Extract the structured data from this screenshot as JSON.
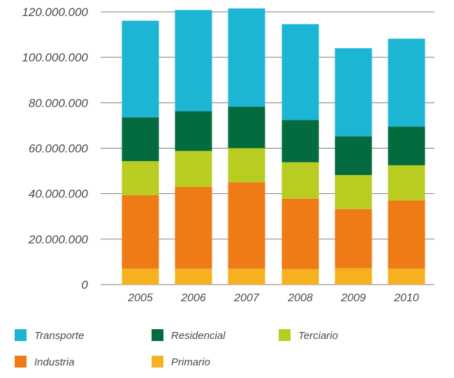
{
  "chart_data": {
    "type": "bar",
    "stacked": true,
    "categories": [
      "2005",
      "2006",
      "2007",
      "2008",
      "2009",
      "2010"
    ],
    "series": [
      {
        "name": "Primario",
        "color": "#f5b120",
        "values": [
          7000000,
          7000000,
          7000000,
          6800000,
          7200000,
          7000000
        ]
      },
      {
        "name": "Industria",
        "color": "#ee7b16",
        "values": [
          32300000,
          36000000,
          38000000,
          31000000,
          26000000,
          30000000
        ]
      },
      {
        "name": "Terciario",
        "color": "#b9cc22",
        "values": [
          15000000,
          15800000,
          15000000,
          16000000,
          15000000,
          15500000
        ]
      },
      {
        "name": "Residencial",
        "color": "#046b3f",
        "values": [
          19300000,
          17500000,
          18300000,
          18600000,
          17000000,
          17000000
        ]
      },
      {
        "name": "Transporte",
        "color": "#1cb6d4",
        "values": [
          42500000,
          44500000,
          43200000,
          42200000,
          38800000,
          38700000
        ]
      }
    ],
    "ylim": [
      0,
      120000000
    ],
    "yticks": [
      0,
      20000000,
      40000000,
      60000000,
      80000000,
      100000000,
      120000000
    ],
    "ytick_labels": [
      "0",
      "20.000.000",
      "40.000.000",
      "60.000.000",
      "80.000.000",
      "100.000.000",
      "120.000.000"
    ],
    "grid": true,
    "legend_order": [
      "Transporte",
      "Residencial",
      "Terciario",
      "Industria",
      "Primario"
    ],
    "legend_position": "bottom"
  }
}
